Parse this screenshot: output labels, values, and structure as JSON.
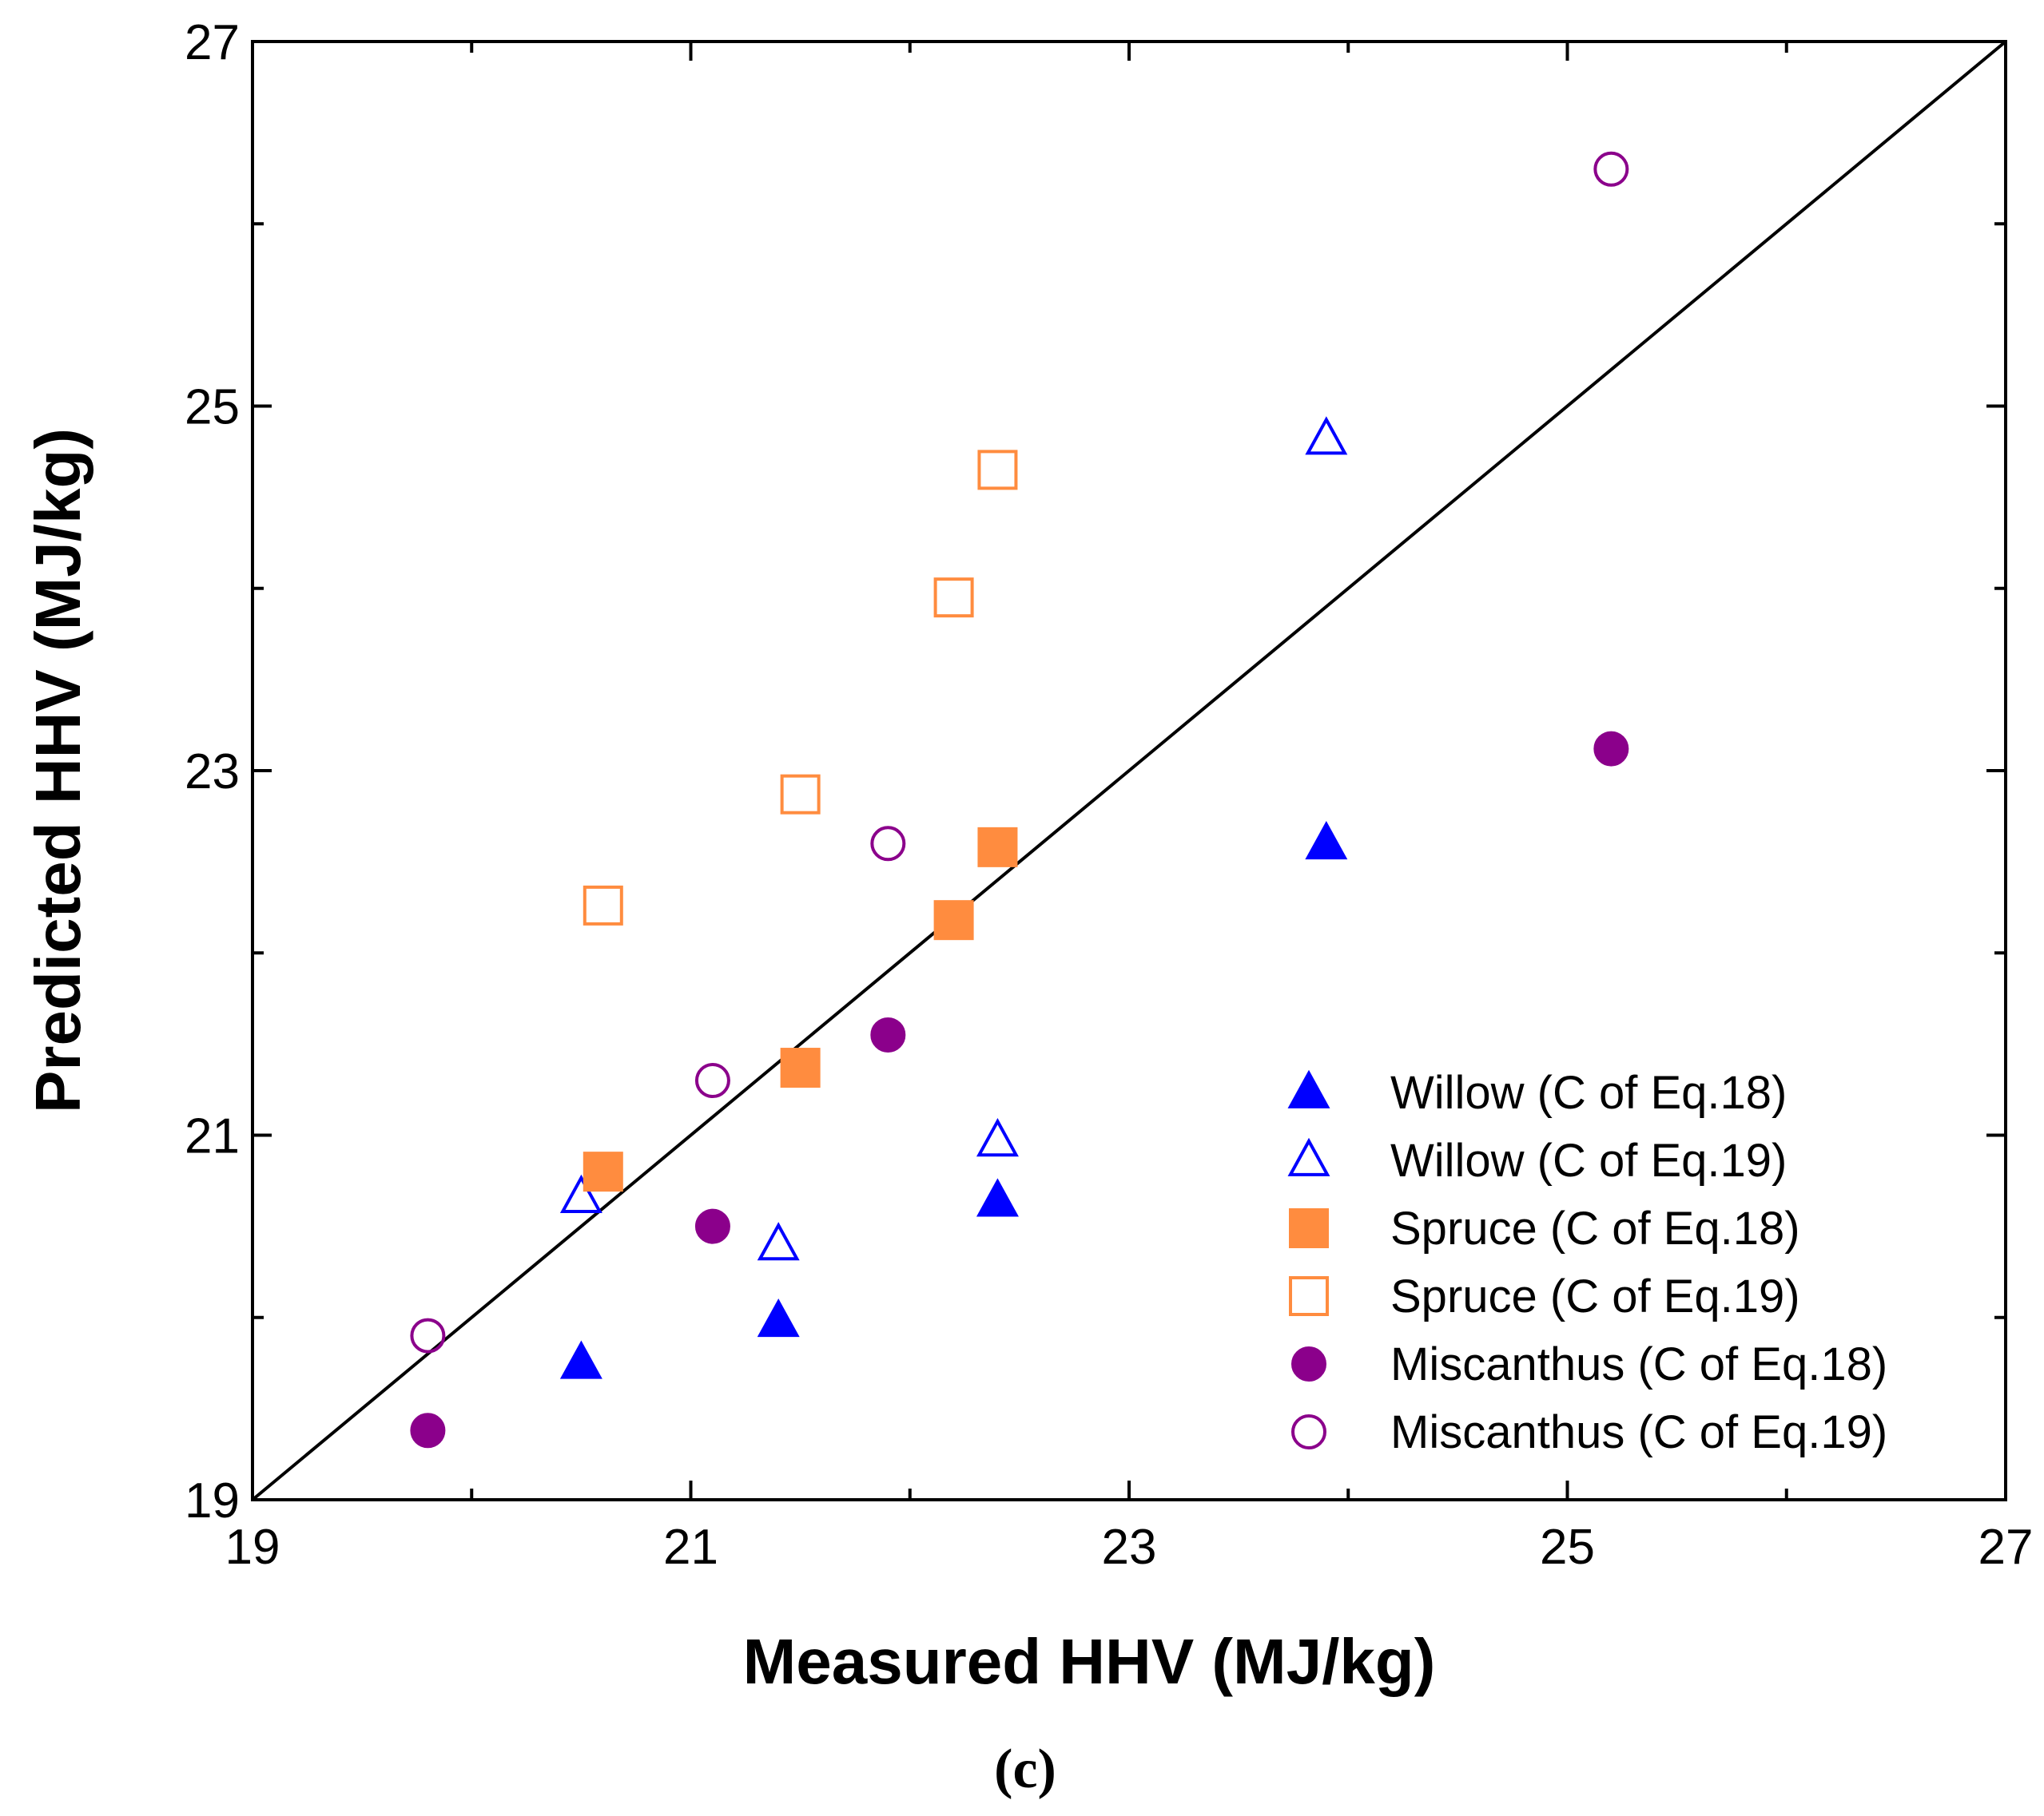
{
  "chart_data": {
    "type": "scatter",
    "xlabel": "Measured HHV (MJ/kg)",
    "ylabel": "Predicted HHV (MJ/kg)",
    "caption": "(c)",
    "xlim": [
      19,
      27
    ],
    "ylim": [
      19,
      27
    ],
    "xticks": [
      19,
      21,
      23,
      25,
      27
    ],
    "yticks": [
      19,
      21,
      23,
      25,
      27
    ],
    "xtick_labels": [
      "19",
      "21",
      "23",
      "25",
      "27"
    ],
    "ytick_labels": [
      "19",
      "21",
      "23",
      "25",
      "27"
    ],
    "reference_line": {
      "x": [
        19,
        27
      ],
      "y": [
        19,
        27
      ],
      "color": "#000000"
    },
    "legend_position": "bottom-right",
    "series": [
      {
        "name": "Willow (C of Eq.18)",
        "marker": "triangle",
        "filled": true,
        "color": "#0000ff",
        "x": [
          20.5,
          21.4,
          22.4,
          23.9
        ],
        "y": [
          19.75,
          19.98,
          20.64,
          22.6
        ]
      },
      {
        "name": "Willow (C of Eq.19)",
        "marker": "triangle",
        "filled": false,
        "color": "#0000ff",
        "x": [
          20.5,
          21.4,
          22.4,
          23.9
        ],
        "y": [
          20.66,
          20.4,
          20.97,
          24.82
        ]
      },
      {
        "name": "Spruce (C of Eq.18)",
        "marker": "square",
        "filled": true,
        "color": "#ff8c3f",
        "x": [
          20.6,
          21.5,
          22.2,
          22.4
        ],
        "y": [
          20.8,
          21.37,
          22.18,
          22.58
        ]
      },
      {
        "name": "Spruce (C of Eq.19)",
        "marker": "square",
        "filled": false,
        "color": "#ff8c3f",
        "x": [
          20.6,
          21.5,
          22.2,
          22.4
        ],
        "y": [
          22.26,
          22.87,
          23.95,
          24.65
        ]
      },
      {
        "name": "Miscanthus (C of Eq.18)",
        "marker": "circle",
        "filled": true,
        "color": "#8b008b",
        "x": [
          19.8,
          21.1,
          21.9,
          25.2
        ],
        "y": [
          19.38,
          20.5,
          21.55,
          23.12
        ]
      },
      {
        "name": "Miscanthus (C of Eq.19)",
        "marker": "circle",
        "filled": false,
        "color": "#8b008b",
        "x": [
          19.8,
          21.1,
          21.9,
          25.2
        ],
        "y": [
          19.9,
          21.3,
          22.6,
          26.3
        ]
      }
    ]
  }
}
